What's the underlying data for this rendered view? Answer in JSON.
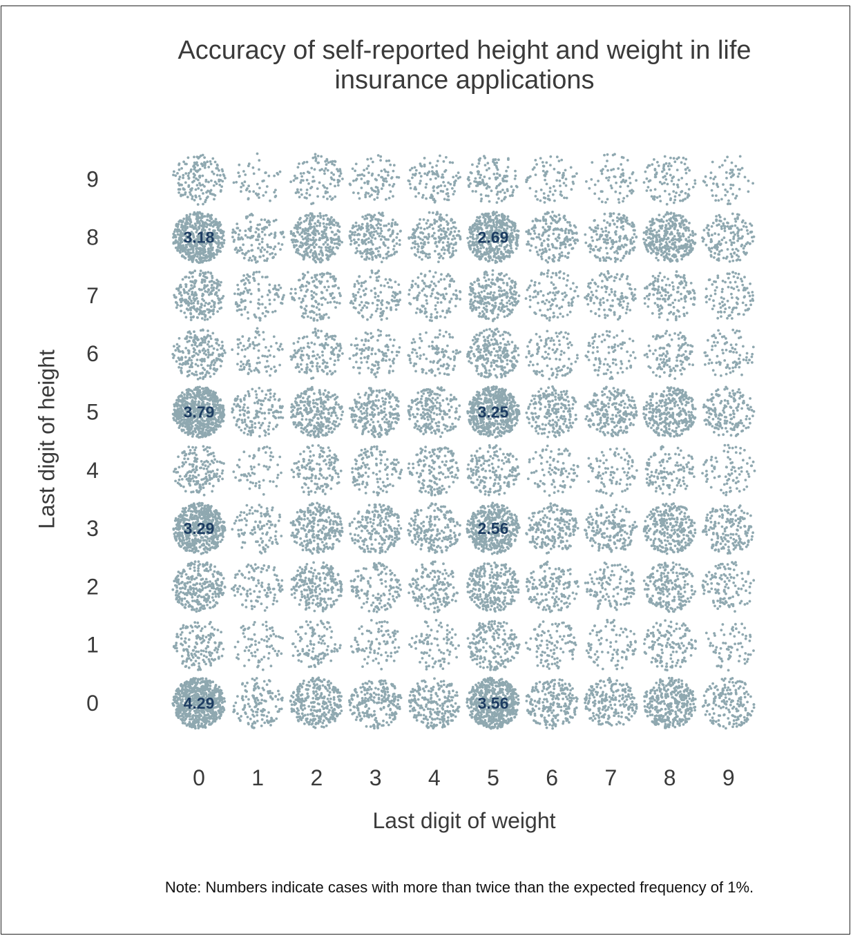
{
  "chart_data": {
    "type": "scatter",
    "subtype": "jittered-dot-grid",
    "title": "Accuracy of self-reported height and weight in life insurance applications",
    "xlabel": "Last digit of weight",
    "ylabel": "Last digit of height",
    "x_ticks": [
      "0",
      "1",
      "2",
      "3",
      "4",
      "5",
      "6",
      "7",
      "8",
      "9"
    ],
    "y_ticks": [
      "0",
      "1",
      "2",
      "3",
      "4",
      "5",
      "6",
      "7",
      "8",
      "9"
    ],
    "value_unit": "percent of cases (approx., read from dot density)",
    "expected_frequency": 1,
    "dot_color": "#8fa8b0",
    "label_color": "#1d3d62",
    "note": "Note: Numbers indicate cases with more than twice than the expected frequency of 1%.",
    "rows": [
      {
        "height_digit": 0,
        "values": [
          4.29,
          0.8,
          1.7,
          1.3,
          1.3,
          3.56,
          1.3,
          1.2,
          2.0,
          1.0
        ]
      },
      {
        "height_digit": 1,
        "values": [
          0.9,
          0.45,
          0.6,
          0.5,
          0.5,
          1.1,
          0.6,
          0.5,
          0.8,
          0.4
        ]
      },
      {
        "height_digit": 2,
        "values": [
          1.6,
          0.6,
          1.3,
          0.8,
          0.9,
          1.6,
          0.9,
          0.7,
          1.2,
          0.7
        ]
      },
      {
        "height_digit": 3,
        "values": [
          3.29,
          0.6,
          1.5,
          1.2,
          1.1,
          2.56,
          1.1,
          1.0,
          1.6,
          1.0
        ]
      },
      {
        "height_digit": 4,
        "values": [
          1.0,
          0.35,
          0.8,
          0.7,
          0.9,
          1.0,
          0.5,
          0.5,
          0.7,
          0.5
        ]
      },
      {
        "height_digit": 5,
        "values": [
          3.79,
          0.9,
          1.6,
          1.3,
          1.2,
          3.25,
          1.2,
          1.3,
          1.8,
          1.0
        ]
      },
      {
        "height_digit": 6,
        "values": [
          1.2,
          0.5,
          0.8,
          0.6,
          0.6,
          1.4,
          0.6,
          0.5,
          0.7,
          0.5
        ]
      },
      {
        "height_digit": 7,
        "values": [
          1.4,
          0.6,
          0.8,
          0.7,
          0.7,
          1.4,
          0.6,
          0.7,
          0.8,
          0.6
        ]
      },
      {
        "height_digit": 8,
        "values": [
          3.18,
          0.8,
          1.7,
          1.2,
          1.1,
          2.69,
          1.1,
          1.0,
          2.0,
          0.9
        ]
      },
      {
        "height_digit": 9,
        "values": [
          0.9,
          0.3,
          0.6,
          0.5,
          0.6,
          0.7,
          0.45,
          0.4,
          0.6,
          0.35
        ]
      }
    ],
    "labeled_cells": [
      {
        "weight_digit": 0,
        "height_digit": 8,
        "label": "3.18"
      },
      {
        "weight_digit": 5,
        "height_digit": 8,
        "label": "2.69"
      },
      {
        "weight_digit": 0,
        "height_digit": 5,
        "label": "3.79"
      },
      {
        "weight_digit": 5,
        "height_digit": 5,
        "label": "3.25"
      },
      {
        "weight_digit": 0,
        "height_digit": 3,
        "label": "3.29"
      },
      {
        "weight_digit": 5,
        "height_digit": 3,
        "label": "2.56"
      },
      {
        "weight_digit": 0,
        "height_digit": 0,
        "label": "4.29"
      },
      {
        "weight_digit": 5,
        "height_digit": 0,
        "label": "3.56"
      }
    ]
  }
}
